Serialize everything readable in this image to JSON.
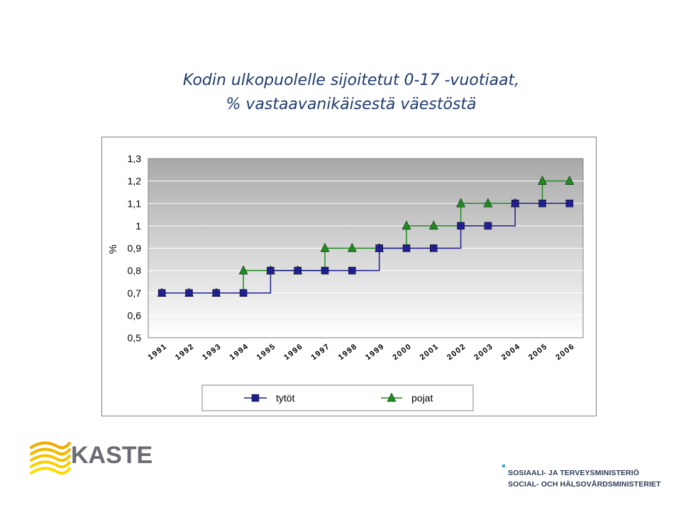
{
  "header": {
    "title_line1": "Kodin ulkopuolelle sijoitetut 0-17 -vuotiaat,",
    "title_line2": "% vastaavanikäisestä väestöstä"
  },
  "chart_data": {
    "type": "line",
    "title": "Kodin ulkopuolelle sijoitetut 0-17 -vuotiaat, % vastaavanikäisestä väestöstä",
    "xlabel": "",
    "ylabel": "%",
    "categories": [
      "1991",
      "1992",
      "1993",
      "1994",
      "1995",
      "1996",
      "1997",
      "1998",
      "1999",
      "2000",
      "2001",
      "2002",
      "2003",
      "2004",
      "2005",
      "2006"
    ],
    "y_tick_labels": [
      "0,5",
      "0,6",
      "0,7",
      "0,8",
      "0,9",
      "1",
      "1,1",
      "1,2",
      "1,3"
    ],
    "ylim": [
      0.5,
      1.3
    ],
    "grid": true,
    "legend_position": "bottom",
    "series": [
      {
        "name": "tytöt",
        "color": "#1f1f8f",
        "marker": "square",
        "values": [
          0.7,
          0.7,
          0.7,
          0.7,
          0.8,
          0.8,
          0.8,
          0.8,
          0.9,
          0.9,
          0.9,
          1.0,
          1.0,
          1.1,
          1.1,
          1.1
        ]
      },
      {
        "name": "pojat",
        "color": "#1e8c1e",
        "marker": "triangle",
        "values": [
          0.7,
          0.7,
          0.7,
          0.8,
          0.8,
          0.8,
          0.9,
          0.9,
          0.9,
          1.0,
          1.0,
          1.1,
          1.1,
          1.1,
          1.2,
          1.2
        ]
      }
    ]
  },
  "logos": {
    "kaste": "KASTE",
    "ministry_line1": "SOSIAALI- JA TERVEYSMINISTERIÖ",
    "ministry_line2": "SOCIAL- OCH HÄLSOVÅRDSMINISTERIET"
  }
}
